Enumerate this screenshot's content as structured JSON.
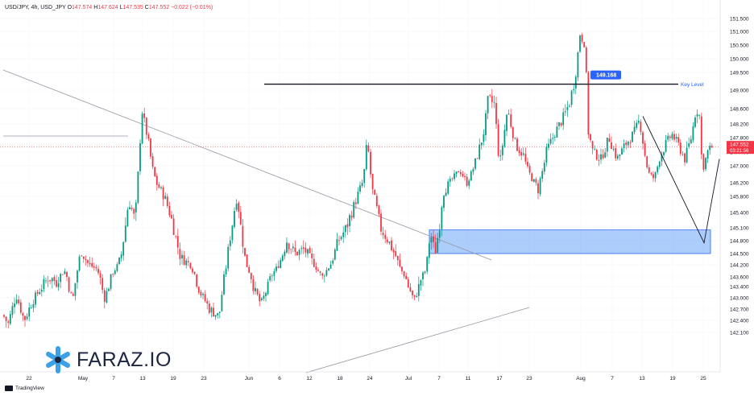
{
  "header": {
    "symbol": "USD/JPY, 4h, USD_JPY",
    "o_label": "O",
    "o": "147.574",
    "h_label": "H",
    "h": "147.624",
    "l_label": "L",
    "l": "147.535",
    "c_label": "C",
    "c": "147.552",
    "change": "−0.022 (−0.01%)"
  },
  "watermark": "FARAZ.IO",
  "footer": "TradingView",
  "colors": {
    "up": "#089981",
    "down": "#f23645",
    "zone_fill": "#5b9cf6",
    "zone_border": "#2962ff",
    "key_line": "#131722",
    "trendline": "#9598a1",
    "price_tag": "#f23645",
    "key_badge": "#2962ff"
  },
  "chart_data": {
    "type": "candlestick",
    "y_ticks": [
      "151.500",
      "151.000",
      "150.500",
      "150.000",
      "149.500",
      "149.000",
      "148.600",
      "148.200",
      "147.800",
      "147.400",
      "147.000",
      "146.200",
      "145.800",
      "145.400",
      "145.100",
      "144.800",
      "144.500",
      "144.200",
      "143.600",
      "143.400",
      "143.000",
      "142.700",
      "142.400",
      "142.100"
    ],
    "x_ticks": [
      "22",
      "May",
      "7",
      "13",
      "19",
      "23",
      "Jun",
      "6",
      "12",
      "18",
      "24",
      "Jul",
      "7",
      "11",
      "17",
      "23",
      "Aug",
      "7",
      "13",
      "19",
      "25"
    ],
    "current_price": "147.552",
    "countdown": "03:21:56",
    "key_level": {
      "value": 149.168,
      "badge": "149.168",
      "label": "Key Level"
    },
    "zone": {
      "from": 144.5,
      "to": 145.05
    },
    "anchors": [
      [
        0,
        142.7
      ],
      [
        10,
        142.3
      ],
      [
        20,
        143.1
      ],
      [
        30,
        142.4
      ],
      [
        40,
        142.9
      ],
      [
        50,
        143.3
      ],
      [
        60,
        143.6
      ],
      [
        70,
        143.5
      ],
      [
        80,
        143.9
      ],
      [
        90,
        142.9
      ],
      [
        100,
        144.6
      ],
      [
        110,
        144.2
      ],
      [
        120,
        144.0
      ],
      [
        130,
        143.0
      ],
      [
        140,
        143.8
      ],
      [
        150,
        144.4
      ],
      [
        160,
        145.7
      ],
      [
        168,
        145.2
      ],
      [
        176,
        148.6
      ],
      [
        184,
        147.7
      ],
      [
        194,
        146.2
      ],
      [
        204,
        145.8
      ],
      [
        214,
        145.2
      ],
      [
        224,
        144.4
      ],
      [
        236,
        144.2
      ],
      [
        248,
        143.2
      ],
      [
        260,
        142.7
      ],
      [
        272,
        142.5
      ],
      [
        284,
        144.7
      ],
      [
        294,
        145.8
      ],
      [
        304,
        144.4
      ],
      [
        314,
        143.4
      ],
      [
        324,
        142.8
      ],
      [
        336,
        143.6
      ],
      [
        346,
        144.2
      ],
      [
        356,
        144.8
      ],
      [
        366,
        144.5
      ],
      [
        378,
        144.6
      ],
      [
        390,
        144.2
      ],
      [
        400,
        143.6
      ],
      [
        410,
        144.2
      ],
      [
        420,
        144.8
      ],
      [
        430,
        145.1
      ],
      [
        440,
        145.6
      ],
      [
        450,
        146.2
      ],
      [
        456,
        147.8
      ],
      [
        462,
        146.0
      ],
      [
        472,
        145.1
      ],
      [
        482,
        144.8
      ],
      [
        492,
        144.4
      ],
      [
        500,
        143.8
      ],
      [
        510,
        143.2
      ],
      [
        514,
        142.9
      ],
      [
        520,
        143.4
      ],
      [
        528,
        143.9
      ],
      [
        534,
        145.0
      ],
      [
        540,
        144.5
      ],
      [
        546,
        145.2
      ],
      [
        550,
        145.9
      ],
      [
        560,
        146.3
      ],
      [
        570,
        146.8
      ],
      [
        580,
        146.2
      ],
      [
        590,
        147.1
      ],
      [
        600,
        147.9
      ],
      [
        606,
        148.8
      ],
      [
        614,
        148.7
      ],
      [
        620,
        147.0
      ],
      [
        630,
        148.6
      ],
      [
        640,
        147.6
      ],
      [
        650,
        147.3
      ],
      [
        660,
        146.4
      ],
      [
        668,
        146.0
      ],
      [
        678,
        147.4
      ],
      [
        690,
        148.0
      ],
      [
        700,
        148.4
      ],
      [
        708,
        148.8
      ],
      [
        714,
        149.3
      ],
      [
        720,
        150.9
      ],
      [
        726,
        150.5
      ],
      [
        730,
        148.0
      ],
      [
        736,
        147.4
      ],
      [
        746,
        147.2
      ],
      [
        756,
        147.8
      ],
      [
        766,
        147.2
      ],
      [
        776,
        147.6
      ],
      [
        786,
        147.9
      ],
      [
        794,
        148.3
      ],
      [
        800,
        147.4
      ],
      [
        806,
        146.6
      ],
      [
        812,
        146.4
      ],
      [
        818,
        147.2
      ],
      [
        826,
        147.6
      ],
      [
        834,
        147.9
      ],
      [
        842,
        147.6
      ],
      [
        850,
        147.2
      ],
      [
        858,
        147.8
      ],
      [
        864,
        148.6
      ],
      [
        868,
        148.5
      ],
      [
        872,
        146.8
      ],
      [
        878,
        147.4
      ],
      [
        884,
        147.55
      ]
    ]
  }
}
